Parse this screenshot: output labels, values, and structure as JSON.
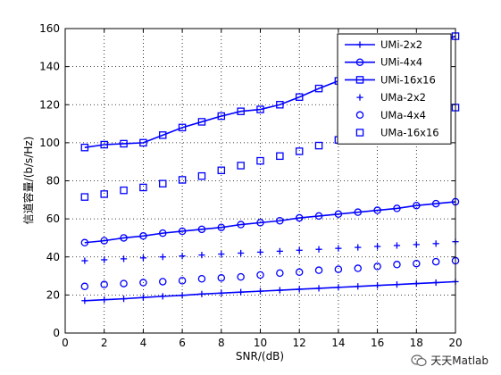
{
  "chart_data": {
    "type": "line",
    "title": "",
    "xlabel": "SNR/(dB)",
    "ylabel": "信道容量/(b/s/Hz)",
    "xlim": [
      0,
      20
    ],
    "ylim": [
      0,
      160
    ],
    "xticks": [
      0,
      2,
      4,
      6,
      8,
      10,
      12,
      14,
      16,
      18,
      20
    ],
    "yticks": [
      0,
      20,
      40,
      60,
      80,
      100,
      120,
      140,
      160
    ],
    "grid": true,
    "legend_position": "top-right",
    "x": [
      1,
      2,
      3,
      4,
      5,
      6,
      7,
      8,
      9,
      10,
      11,
      12,
      13,
      14,
      15,
      16,
      17,
      18,
      19,
      20
    ],
    "series": [
      {
        "name": "UMi-2x2",
        "marker": "plus",
        "line": "solid",
        "values": [
          17,
          17.5,
          18,
          18.7,
          19.3,
          19.8,
          20.5,
          21,
          21.5,
          22,
          22.5,
          23,
          23.5,
          24,
          24.5,
          25,
          25.5,
          26,
          26.5,
          27
        ]
      },
      {
        "name": "UMi-4x4",
        "marker": "circle",
        "line": "solid",
        "values": [
          47.5,
          48.5,
          50,
          51,
          52.5,
          53.5,
          54.5,
          55.5,
          57,
          58,
          59,
          60.5,
          61.5,
          62.5,
          63.5,
          64.5,
          65.5,
          67,
          68,
          69
        ]
      },
      {
        "name": "UMi-16x16",
        "marker": "square",
        "line": "solid",
        "values": [
          97.5,
          99,
          99.5,
          100,
          104,
          108,
          111,
          114,
          116.5,
          117.5,
          120,
          124,
          128.5,
          132.5,
          136,
          140,
          144,
          148,
          152,
          156
        ]
      },
      {
        "name": "UMa-2x2",
        "marker": "plus",
        "line": "dotted",
        "values": [
          38,
          38.5,
          39,
          39.5,
          40,
          40.5,
          41,
          41.5,
          42,
          42.5,
          43,
          43.5,
          44,
          44.5,
          45,
          45.5,
          46,
          46.5,
          47,
          48
        ]
      },
      {
        "name": "UMa-4x4",
        "marker": "circle",
        "line": "dotted",
        "values": [
          24.5,
          25.5,
          26,
          26.5,
          27,
          27.5,
          28.5,
          29,
          29.5,
          30.5,
          31.5,
          32,
          33,
          33.5,
          34,
          35,
          36,
          36.5,
          37.5,
          38
        ]
      },
      {
        "name": "UMa-16x16",
        "marker": "square",
        "line": "dotted",
        "values": [
          71.5,
          73,
          75,
          76.5,
          78.5,
          80.5,
          82.5,
          85.5,
          88,
          90.5,
          93,
          95.5,
          98.5,
          101.5,
          104.5,
          107.5,
          110,
          112.5,
          115.5,
          118.5
        ]
      }
    ],
    "color": "#0000ff"
  },
  "watermark": {
    "text": "天天Matlab",
    "icon": "wechat-icon"
  }
}
